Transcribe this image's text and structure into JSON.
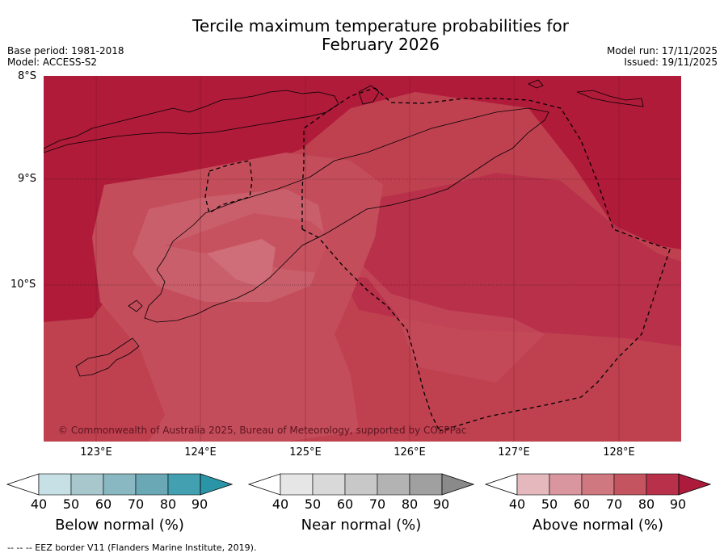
{
  "title": {
    "line1": "Tercile maximum temperature probabilities for",
    "line2": "February 2026"
  },
  "meta": {
    "base_period": "Base period: 1981-2018",
    "model": "Model: ACCESS-S2",
    "model_run": "Model run: 17/11/2025",
    "issued": "Issued: 19/11/2025"
  },
  "map": {
    "lat_labels": [
      "8°S",
      "9°S",
      "10°S"
    ],
    "lon_labels": [
      "123°E",
      "124°E",
      "125°E",
      "126°E",
      "127°E",
      "128°E"
    ],
    "copyright": "© Commonwealth of Australia 2025, Bureau of Meteorology, supported by COSPPac"
  },
  "colorbars": [
    {
      "title": "Below normal (%)",
      "ticks": [
        "40",
        "50",
        "60",
        "70",
        "80",
        "90"
      ],
      "colors": [
        "#ffffff",
        "#c6e0e6",
        "#a7c7cc",
        "#8ab8c2",
        "#6aa8b6",
        "#43a0b0",
        "#2b95a8"
      ]
    },
    {
      "title": "Near normal (%)",
      "ticks": [
        "40",
        "50",
        "60",
        "70",
        "80",
        "90"
      ],
      "colors": [
        "#ffffff",
        "#e6e6e6",
        "#d9d9d9",
        "#c8c8c8",
        "#b3b3b3",
        "#a0a0a0",
        "#8a8a8a"
      ]
    },
    {
      "title": "Above normal (%)",
      "ticks": [
        "40",
        "50",
        "60",
        "70",
        "80",
        "90"
      ],
      "colors": [
        "#ffffff",
        "#e5b8be",
        "#da969f",
        "#cf7880",
        "#c45560",
        "#b8304a",
        "#ad1b3c"
      ]
    }
  ],
  "footer": "-- -- -- EEZ border V11 (Flanders Marine Institute, 2019)."
}
